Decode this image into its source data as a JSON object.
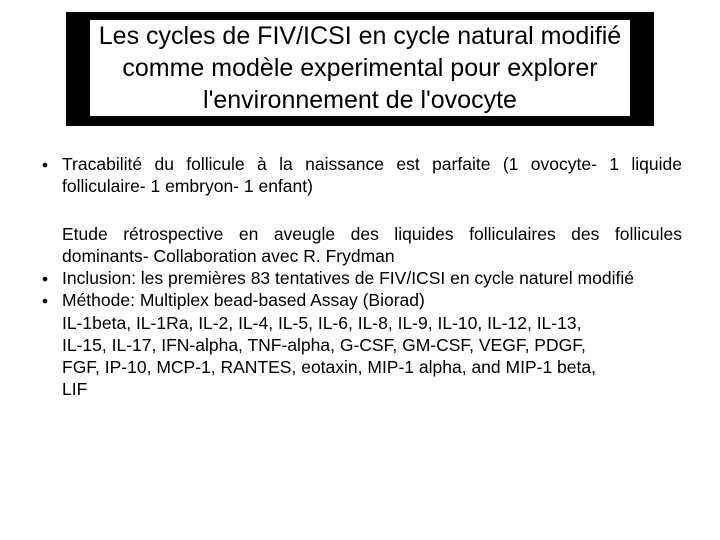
{
  "colors": {
    "background": "#ffffff",
    "title_box_bg": "#000000",
    "title_inner_bg": "#ffffff",
    "text": "#000000"
  },
  "fonts": {
    "title_size_pt": 25,
    "body_size_pt": 17.5,
    "family": "Arial"
  },
  "title": "Les cycles de FIV/ICSI en cycle natural modifié comme modèle experimental pour explorer l'environnement de l'ovocyte",
  "bullets": [
    "Tracabilité du follicule à la naissance est parfaite (1 ovocyte- 1 liquide folliculaire- 1 embryon- 1 enfant)"
  ],
  "paragraph": "Etude rétrospective en aveugle des liquides folliculaires des follicules dominants-  Collaboration  avec R. Frydman",
  "bullets2": [
    "Inclusion:  les premières  83 tentatives de FIV/ICSI en cycle naturel modifié",
    "Méthode: Multiplex bead-based Assay (Biorad)"
  ],
  "sublines": [
    "IL-1beta, IL-1Ra, IL-2, IL-4, IL-5, IL-6, IL-8, IL-9, IL-10, IL-12, IL-13,",
    "IL-15, IL-17, IFN-alpha, TNF-alpha, G-CSF, GM-CSF, VEGF, PDGF,",
    "FGF, IP-10, MCP-1, RANTES, eotaxin, MIP-1 alpha, and MIP-1 beta,",
    "LIF"
  ]
}
